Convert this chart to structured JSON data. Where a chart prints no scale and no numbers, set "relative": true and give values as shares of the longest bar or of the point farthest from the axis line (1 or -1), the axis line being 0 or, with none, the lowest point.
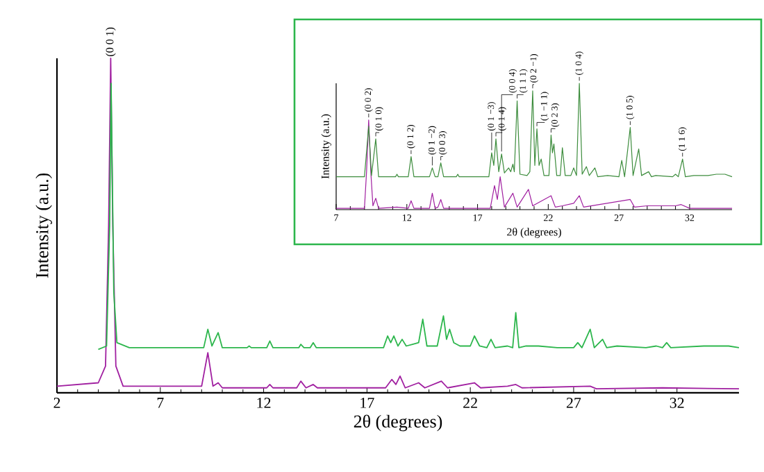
{
  "chart_data": [
    {
      "type": "line",
      "relative": true,
      "xlabel": "2θ (degrees)",
      "ylabel": "Intensity (a.u.)",
      "xlim": [
        2,
        35
      ],
      "xticks": [
        2,
        7,
        12,
        17,
        22,
        27,
        32
      ],
      "series": [
        {
          "color": "#a01fa0",
          "x": [
            2.0,
            4.0,
            4.35,
            4.5,
            4.6,
            4.7,
            4.85,
            5.2,
            9.0,
            9.3,
            9.55,
            9.8,
            10.0,
            12.15,
            12.3,
            12.45,
            13.6,
            13.8,
            14.05,
            14.4,
            14.6,
            17.9,
            18.2,
            18.4,
            18.6,
            18.85,
            19.5,
            19.8,
            20.6,
            20.9,
            22.2,
            22.5,
            23.8,
            24.2,
            24.5,
            27.8,
            28.1,
            31.3,
            35.0
          ],
          "values": [
            0.02,
            0.03,
            0.08,
            0.5,
            1.0,
            0.5,
            0.08,
            0.02,
            0.02,
            0.12,
            0.02,
            0.03,
            0.015,
            0.015,
            0.025,
            0.015,
            0.015,
            0.035,
            0.015,
            0.025,
            0.015,
            0.015,
            0.04,
            0.025,
            0.05,
            0.015,
            0.03,
            0.015,
            0.035,
            0.015,
            0.03,
            0.015,
            0.02,
            0.025,
            0.015,
            0.02,
            0.012,
            0.015,
            0.012
          ]
        },
        {
          "color": "#2cb64c",
          "x": [
            4.0,
            4.4,
            4.55,
            4.62,
            4.75,
            4.9,
            5.5,
            9.1,
            9.3,
            9.5,
            9.8,
            10.0,
            11.2,
            11.3,
            11.4,
            12.15,
            12.3,
            12.45,
            13.7,
            13.8,
            13.95,
            14.25,
            14.4,
            14.55,
            17.8,
            18.0,
            18.15,
            18.3,
            18.5,
            18.7,
            18.9,
            19.2,
            19.5,
            19.7,
            19.9,
            20.4,
            20.7,
            20.85,
            21.0,
            21.2,
            21.5,
            22.0,
            22.2,
            22.45,
            22.8,
            23.0,
            23.2,
            23.8,
            24.05,
            24.2,
            24.35,
            24.7,
            25.3,
            26.2,
            27.0,
            27.2,
            27.4,
            27.8,
            28.0,
            28.4,
            28.6,
            29.1,
            30.5,
            31.0,
            31.3,
            31.5,
            31.7,
            33.3,
            34.0,
            34.5,
            35.0
          ],
          "values": [
            0.13,
            0.14,
            0.5,
            0.925,
            0.3,
            0.15,
            0.135,
            0.135,
            0.19,
            0.14,
            0.18,
            0.135,
            0.135,
            0.14,
            0.135,
            0.135,
            0.155,
            0.135,
            0.135,
            0.145,
            0.135,
            0.135,
            0.15,
            0.135,
            0.135,
            0.17,
            0.15,
            0.17,
            0.14,
            0.16,
            0.14,
            0.145,
            0.15,
            0.22,
            0.14,
            0.14,
            0.23,
            0.16,
            0.19,
            0.15,
            0.14,
            0.14,
            0.17,
            0.14,
            0.135,
            0.16,
            0.135,
            0.14,
            0.135,
            0.24,
            0.135,
            0.14,
            0.14,
            0.135,
            0.135,
            0.15,
            0.135,
            0.19,
            0.135,
            0.16,
            0.135,
            0.14,
            0.135,
            0.14,
            0.135,
            0.15,
            0.135,
            0.14,
            0.14,
            0.14,
            0.135
          ]
        }
      ],
      "annotations": [
        {
          "text": "(0 0 1)",
          "x": 4.6,
          "y": 1.0
        }
      ]
    },
    {
      "type": "line",
      "relative": true,
      "xlabel": "2θ (degrees)",
      "ylabel": "Intensity (a.u.)",
      "xlim": [
        7,
        35
      ],
      "xticks": [
        7,
        12,
        17,
        22,
        27,
        32
      ],
      "series": [
        {
          "color": "#a01fa0",
          "x": [
            7.0,
            9.0,
            9.15,
            9.3,
            9.45,
            9.6,
            9.8,
            10.0,
            11.3,
            12.1,
            12.3,
            12.5,
            13.6,
            13.8,
            14.0,
            14.2,
            14.4,
            14.6,
            17.9,
            18.2,
            18.4,
            18.6,
            18.9,
            19.5,
            19.8,
            20.6,
            20.9,
            22.2,
            22.5,
            23.0,
            23.8,
            24.2,
            24.5,
            27.8,
            28.1,
            29.0,
            31.0,
            31.4,
            32.0,
            35.0
          ],
          "values": [
            0.01,
            0.01,
            0.3,
            0.71,
            0.3,
            0.03,
            0.09,
            0.01,
            0.02,
            0.01,
            0.07,
            0.01,
            0.01,
            0.13,
            0.01,
            0.02,
            0.08,
            0.01,
            0.01,
            0.19,
            0.08,
            0.26,
            0.02,
            0.13,
            0.02,
            0.16,
            0.03,
            0.11,
            0.02,
            0.03,
            0.05,
            0.11,
            0.02,
            0.08,
            0.02,
            0.03,
            0.03,
            0.04,
            0.01,
            0.01
          ]
        },
        {
          "color": "#3c8c3c",
          "x": [
            7.0,
            9.0,
            9.3,
            9.5,
            9.8,
            10.0,
            11.2,
            11.3,
            11.4,
            12.1,
            12.3,
            12.5,
            13.6,
            13.8,
            14.0,
            14.2,
            14.4,
            14.6,
            15.5,
            15.6,
            15.7,
            17.8,
            18.0,
            18.15,
            18.3,
            18.5,
            18.7,
            18.9,
            19.2,
            19.35,
            19.5,
            19.6,
            19.8,
            20.0,
            20.5,
            20.7,
            20.9,
            21.05,
            21.2,
            21.35,
            21.5,
            21.7,
            22.05,
            22.2,
            22.3,
            22.4,
            22.6,
            22.85,
            23.0,
            23.2,
            23.6,
            23.8,
            24.0,
            24.2,
            24.4,
            24.7,
            24.9,
            25.3,
            25.5,
            26.2,
            27.0,
            27.2,
            27.4,
            27.8,
            28.0,
            28.4,
            28.6,
            29.1,
            29.3,
            29.6,
            30.8,
            31.0,
            31.2,
            31.5,
            31.7,
            32.3,
            33.3,
            33.9,
            34.5,
            35.0
          ],
          "values": [
            0.26,
            0.26,
            0.66,
            0.27,
            0.56,
            0.26,
            0.26,
            0.28,
            0.26,
            0.26,
            0.42,
            0.26,
            0.26,
            0.33,
            0.26,
            0.26,
            0.37,
            0.26,
            0.26,
            0.28,
            0.26,
            0.26,
            0.45,
            0.35,
            0.56,
            0.3,
            0.44,
            0.29,
            0.33,
            0.3,
            0.36,
            0.3,
            0.86,
            0.28,
            0.27,
            0.3,
            0.94,
            0.35,
            0.64,
            0.35,
            0.4,
            0.27,
            0.27,
            0.59,
            0.45,
            0.52,
            0.27,
            0.27,
            0.49,
            0.27,
            0.27,
            0.33,
            0.27,
            1.0,
            0.28,
            0.34,
            0.27,
            0.33,
            0.26,
            0.27,
            0.26,
            0.39,
            0.26,
            0.65,
            0.27,
            0.48,
            0.27,
            0.3,
            0.26,
            0.27,
            0.26,
            0.28,
            0.26,
            0.4,
            0.26,
            0.27,
            0.27,
            0.28,
            0.28,
            0.26
          ]
        }
      ],
      "annotations": [
        {
          "text": "(0 0 2)",
          "x": 9.3,
          "y": 0.71
        },
        {
          "text": "(0 1 0)",
          "x": 9.8,
          "y": 0.56
        },
        {
          "text": "(0 1 2)",
          "x": 12.3,
          "y": 0.42
        },
        {
          "text": "(0 1 −2)",
          "x": 13.8,
          "y": 0.33
        },
        {
          "text": "(0 0 3)",
          "x": 14.4,
          "y": 0.37
        },
        {
          "text": "(0 1 −3)",
          "x": 18.0,
          "y": 0.45
        },
        {
          "text": "(0 1 4)",
          "x": 18.3,
          "y": 0.56
        },
        {
          "text": "(0 0 4)",
          "x": 18.7,
          "y": 0.44
        },
        {
          "text": "(1 1 1)",
          "x": 19.8,
          "y": 0.86
        },
        {
          "text": "(0 2 −1)",
          "x": 20.9,
          "y": 0.94
        },
        {
          "text": "(1 −1 1)",
          "x": 21.2,
          "y": 0.64
        },
        {
          "text": "(0 2 3)",
          "x": 22.2,
          "y": 0.59
        },
        {
          "text": "(1 0 4)",
          "x": 24.2,
          "y": 1.0
        },
        {
          "text": "(1 0 5)",
          "x": 27.8,
          "y": 0.65
        },
        {
          "text": "(1 1 6)",
          "x": 31.5,
          "y": 0.4
        }
      ]
    }
  ]
}
